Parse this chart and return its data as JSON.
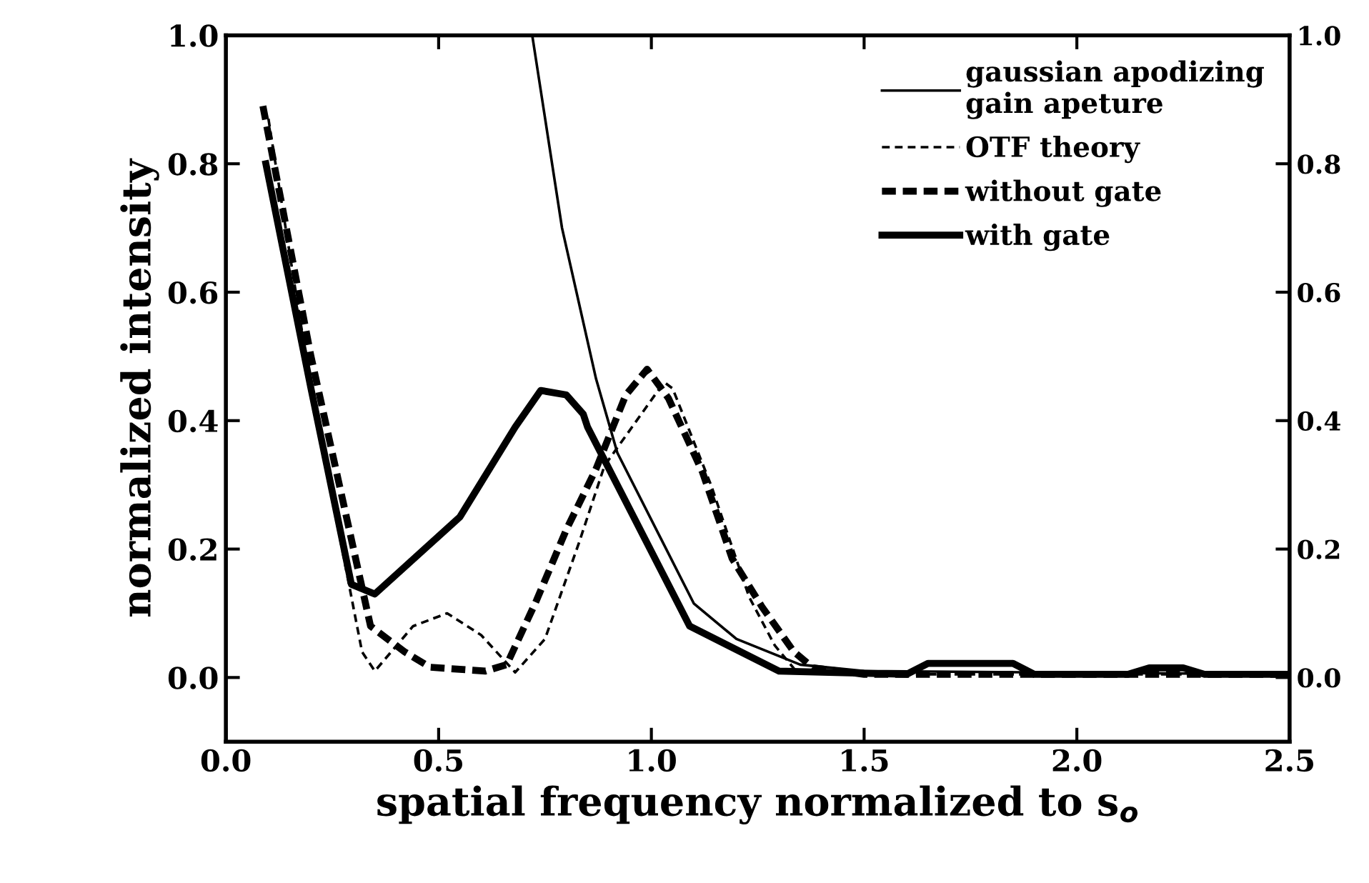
{
  "chart_data": {
    "type": "line",
    "xlabel": "spatial frequency normalized to s$_{o}$",
    "ylabel": "normalized intensity",
    "xlim": [
      0.0,
      2.5
    ],
    "xticks": [
      {
        "value": 0,
        "label": "0.0"
      },
      0.5,
      {
        "value": 1,
        "label": "1.0"
      },
      1.5,
      {
        "value": 2,
        "label": "2.0"
      },
      2.5
    ],
    "ylim": [
      -0.1,
      1.0
    ],
    "yticks": [
      {
        "value": 0,
        "label": "0.0"
      },
      0.2,
      0.4,
      0.6,
      0.8,
      {
        "value": 1,
        "label": "1.0"
      }
    ],
    "y2lim": [
      -0.1,
      1.0
    ],
    "y2ticks": [
      {
        "value": 0,
        "label": "0.0"
      },
      0.2,
      0.4,
      0.6,
      0.8,
      {
        "value": 1,
        "label": "1.0"
      }
    ],
    "legend": "top right",
    "grid": false,
    "series": [
      {
        "name": "gaussian apodizing\ngain apeture",
        "color": "#000000",
        "line_style": "solid",
        "x": [
          0.72,
          0.79,
          0.87,
          0.92,
          1.1,
          1.2,
          1.35,
          1.5,
          2.5
        ],
        "values": [
          1.0,
          0.7,
          0.465,
          0.35,
          0.115,
          0.06,
          0.02,
          0.01,
          0.005
        ]
      },
      {
        "name": "OTF theory",
        "color": "#000000",
        "line_style": "dashed",
        "x": [
          0.1,
          0.2,
          0.32,
          0.35,
          0.44,
          0.52,
          0.6,
          0.68,
          0.75,
          0.83,
          0.89,
          1.03,
          1.05,
          1.14,
          1.23,
          1.29,
          1.34,
          1.5,
          2.5
        ],
        "values": [
          0.87,
          0.45,
          0.04,
          0.01,
          0.08,
          0.1,
          0.066,
          0.008,
          0.06,
          0.21,
          0.33,
          0.46,
          0.45,
          0.3,
          0.125,
          0.05,
          0.01,
          0.005,
          0.005
        ]
      },
      {
        "name": "without gate",
        "color": "#000000",
        "line_style": "dashed",
        "x": [
          0.087,
          0.2,
          0.34,
          0.42,
          0.48,
          0.61,
          0.66,
          0.73,
          0.8,
          0.87,
          0.94,
          0.99,
          1.04,
          1.12,
          1.19,
          1.26,
          1.335,
          1.38,
          1.5,
          2.5
        ],
        "values": [
          0.89,
          0.5,
          0.08,
          0.04,
          0.016,
          0.01,
          0.02,
          0.12,
          0.23,
          0.325,
          0.44,
          0.48,
          0.435,
          0.32,
          0.185,
          0.11,
          0.04,
          0.015,
          0.005,
          0.005
        ]
      },
      {
        "name": "with gate",
        "color": "#000000",
        "line_style": "solid",
        "x": [
          0.094,
          0.2,
          0.295,
          0.35,
          0.5,
          0.55,
          0.68,
          0.74,
          0.8,
          0.84,
          0.85,
          1.09,
          1.3,
          1.6,
          1.65,
          1.85,
          1.9,
          2.12,
          2.17,
          2.25,
          2.3,
          2.5
        ],
        "values": [
          0.8,
          0.45,
          0.145,
          0.13,
          0.22,
          0.25,
          0.39,
          0.447,
          0.44,
          0.41,
          0.39,
          0.08,
          0.01,
          0.005,
          0.022,
          0.022,
          0.005,
          0.005,
          0.015,
          0.015,
          0.005,
          0.005
        ]
      }
    ]
  }
}
